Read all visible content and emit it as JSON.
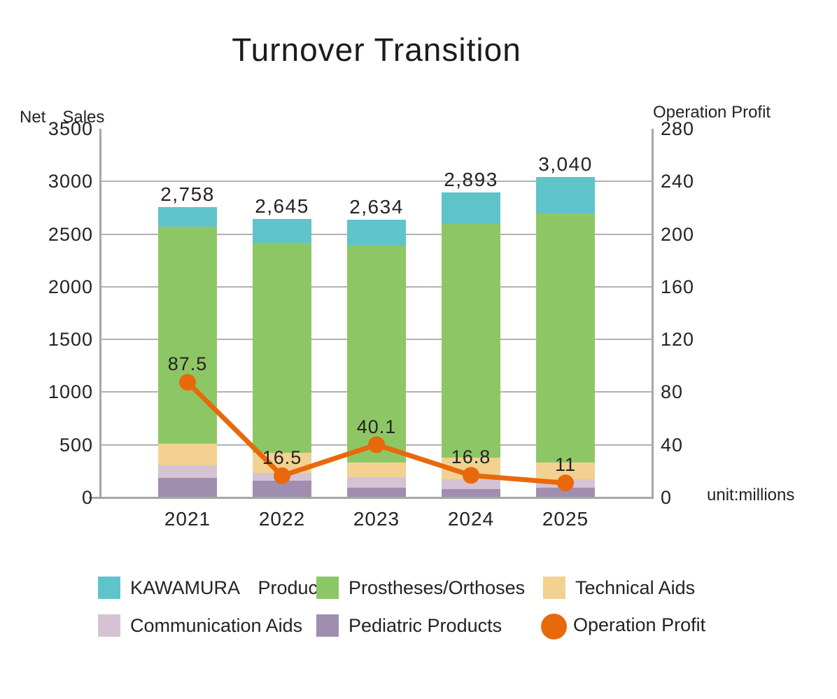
{
  "chart_data": {
    "type": "bar",
    "subtype": "stacked-bars-with-line-overlay",
    "title": "Turnover Transition",
    "categories": [
      "2021",
      "2022",
      "2023",
      "2024",
      "2025"
    ],
    "series": [
      {
        "name": "Pediatric Products",
        "color": "#a08eb1",
        "values": [
          185,
          160,
          95,
          80,
          95
        ]
      },
      {
        "name": "Communication Aids",
        "color": "#d5c3d4",
        "values": [
          120,
          75,
          95,
          95,
          75
        ]
      },
      {
        "name": "Technical Aids",
        "color": "#f2d191",
        "values": [
          205,
          190,
          140,
          205,
          165
        ]
      },
      {
        "name": "Prostheses/Orthoses",
        "color": "#8dc765",
        "values": [
          2060,
          1995,
          2064,
          2218,
          2360
        ]
      },
      {
        "name": "KAWAMURA Products",
        "color": "#5ec4c9",
        "values": [
          188,
          225,
          240,
          295,
          345
        ]
      }
    ],
    "bar_totals": {
      "values": [
        2758,
        2645,
        2634,
        2893,
        3040
      ],
      "labels": [
        "2,758",
        "2,645",
        "2,634",
        "2,893",
        "3,040"
      ]
    },
    "line_series": {
      "name": "Operation Profit",
      "color": "#e8690b",
      "axis": "right",
      "values": [
        87.5,
        16.5,
        40.1,
        16.8,
        11
      ],
      "labels": [
        "87.5",
        "16.5",
        "40.1",
        "16.8",
        "11"
      ]
    },
    "left_axis": {
      "title": "Net　Sales",
      "min": 0,
      "max": 3500,
      "ticks": [
        3500,
        3000,
        2500,
        2000,
        1500,
        1000,
        500,
        0
      ],
      "gridlines": [
        3000,
        2500,
        2000,
        1500,
        1000,
        500
      ]
    },
    "right_axis": {
      "title": "Operation Profit",
      "min": 0,
      "max": 280,
      "ticks": [
        280,
        240,
        200,
        160,
        120,
        80,
        40,
        0
      ]
    },
    "grid": true,
    "legend_position": "bottom",
    "unit_note": "unit:millions"
  },
  "legend": {
    "items": [
      {
        "label": "KAWAMURA　Products",
        "color": "#5ec4c9",
        "shape": "square"
      },
      {
        "label": "Prostheses/Orthoses",
        "color": "#8dc765",
        "shape": "square"
      },
      {
        "label": "Technical Aids",
        "color": "#f2d191",
        "shape": "square"
      },
      {
        "label": "Communication Aids",
        "color": "#d5c3d4",
        "shape": "square"
      },
      {
        "label": "Pediatric Products",
        "color": "#a08eb1",
        "shape": "square"
      },
      {
        "label": "Operation Profit",
        "color": "#e8690b",
        "shape": "circle"
      }
    ]
  },
  "colors": {
    "text": "#262223",
    "gridline": "#b3b1b1",
    "axisline": "#a8a6a6",
    "line": "#e8690b"
  }
}
